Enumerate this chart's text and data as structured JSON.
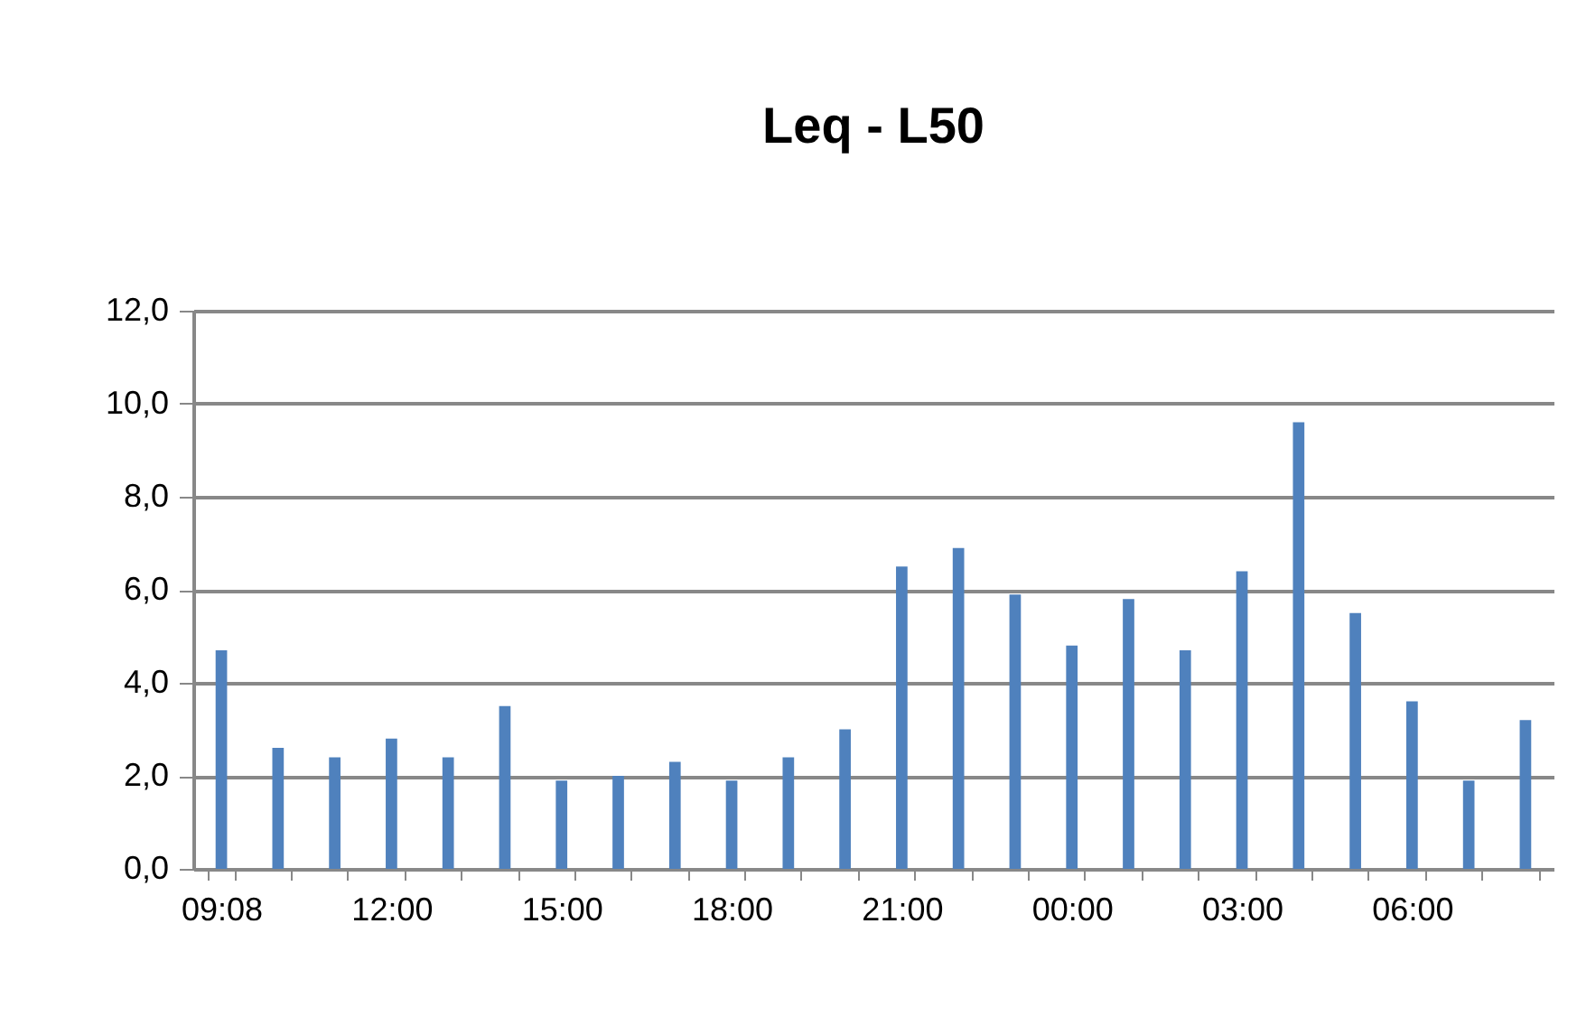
{
  "chart_data": {
    "type": "bar",
    "title": "Leq - L50",
    "categories": [
      "09:08",
      null,
      null,
      "12:00",
      null,
      null,
      "15:00",
      null,
      null,
      "18:00",
      null,
      null,
      "21:00",
      null,
      null,
      "00:00",
      null,
      null,
      "03:00",
      null,
      null,
      "06:00",
      null,
      null
    ],
    "values": [
      4.7,
      2.6,
      2.4,
      2.8,
      2.4,
      3.5,
      1.9,
      2.0,
      2.3,
      1.9,
      2.4,
      3.0,
      6.5,
      6.9,
      5.9,
      4.8,
      5.8,
      4.7,
      6.4,
      9.6,
      5.5,
      3.6,
      1.9,
      3.2
    ],
    "color": "#4f81bd",
    "ylim": [
      0,
      12
    ],
    "yticks": [
      {
        "value": 0,
        "label": "0,0"
      },
      {
        "value": 2,
        "label": "2,0"
      },
      {
        "value": 4,
        "label": "4,0"
      },
      {
        "value": 6,
        "label": "6,0"
      },
      {
        "value": 8,
        "label": "8,0"
      },
      {
        "value": 10,
        "label": "10,0"
      },
      {
        "value": 12,
        "label": "12,0"
      }
    ],
    "grid": "y"
  }
}
